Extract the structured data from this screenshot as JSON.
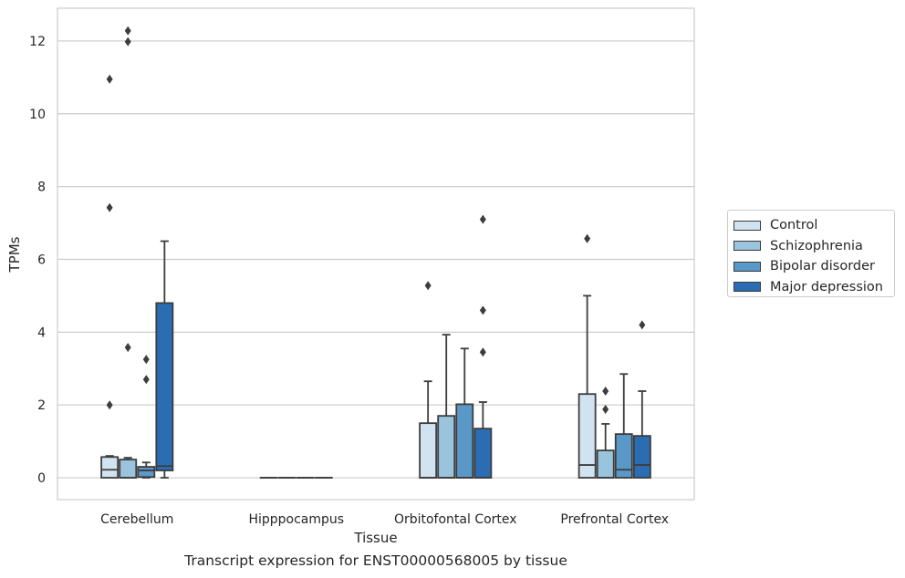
{
  "chart_data": {
    "type": "box",
    "categories": [
      "Cerebellum",
      "Hipppocampus",
      "Orbitofontal Cortex",
      "Prefrontal Cortex"
    ],
    "xlabel": "Tissue",
    "ylabel": "TPMs",
    "ylim": [
      -0.6,
      12.9
    ],
    "yticks": [
      0,
      2,
      4,
      6,
      8,
      10,
      12
    ],
    "grid": "horizontal",
    "legend_position": "right",
    "series": [
      {
        "name": "Control",
        "color": "#d1e2f1",
        "boxes": [
          {
            "q1": 0,
            "median": 0.22,
            "q3": 0.57,
            "whisker_low": 0,
            "whisker_high": 0.6,
            "outliers": [
              2.0,
              7.42,
              10.95
            ]
          },
          {
            "q1": 0,
            "median": 0,
            "q3": 0,
            "whisker_low": 0,
            "whisker_high": 0,
            "outliers": []
          },
          {
            "q1": 0,
            "median": 0,
            "q3": 1.5,
            "whisker_low": 0,
            "whisker_high": 2.65,
            "outliers": [
              5.28
            ]
          },
          {
            "q1": 0,
            "median": 0.35,
            "q3": 2.3,
            "whisker_low": 0,
            "whisker_high": 5.0,
            "outliers": [
              6.57
            ]
          }
        ]
      },
      {
        "name": "Schizophrenia",
        "color": "#9ac3de",
        "boxes": [
          {
            "q1": 0,
            "median": 0,
            "q3": 0.5,
            "whisker_low": 0,
            "whisker_high": 0.55,
            "outliers": [
              3.58,
              11.98,
              12.28
            ]
          },
          {
            "q1": 0,
            "median": 0,
            "q3": 0,
            "whisker_low": 0,
            "whisker_high": 0,
            "outliers": []
          },
          {
            "q1": 0,
            "median": 0,
            "q3": 1.7,
            "whisker_low": 0,
            "whisker_high": 3.93,
            "outliers": []
          },
          {
            "q1": 0,
            "median": 0,
            "q3": 0.75,
            "whisker_low": 0,
            "whisker_high": 1.48,
            "outliers": [
              1.88,
              2.38
            ]
          }
        ]
      },
      {
        "name": "Bipolar disorder",
        "color": "#5a98c8",
        "boxes": [
          {
            "q1": 0.02,
            "median": 0.2,
            "q3": 0.3,
            "whisker_low": 0,
            "whisker_high": 0.42,
            "outliers": [
              2.7,
              3.25
            ]
          },
          {
            "q1": 0,
            "median": 0,
            "q3": 0,
            "whisker_low": 0,
            "whisker_high": 0,
            "outliers": []
          },
          {
            "q1": 0,
            "median": 0,
            "q3": 2.02,
            "whisker_low": 0,
            "whisker_high": 3.55,
            "outliers": []
          },
          {
            "q1": 0,
            "median": 0.22,
            "q3": 1.2,
            "whisker_low": 0,
            "whisker_high": 2.85,
            "outliers": []
          }
        ]
      },
      {
        "name": "Major depression",
        "color": "#2a6db2",
        "boxes": [
          {
            "q1": 0.2,
            "median": 0.32,
            "q3": 4.8,
            "whisker_low": 0,
            "whisker_high": 6.5,
            "outliers": []
          },
          {
            "q1": 0,
            "median": 0,
            "q3": 0,
            "whisker_low": 0,
            "whisker_high": 0,
            "outliers": []
          },
          {
            "q1": 0,
            "median": 0,
            "q3": 1.35,
            "whisker_low": 0,
            "whisker_high": 2.08,
            "outliers": [
              3.45,
              4.6,
              7.1
            ]
          },
          {
            "q1": 0,
            "median": 0.35,
            "q3": 1.15,
            "whisker_low": 0,
            "whisker_high": 2.38,
            "outliers": [
              4.2
            ]
          }
        ]
      }
    ]
  },
  "caption": "Transcript expression for ENST00000568005 by tissue"
}
